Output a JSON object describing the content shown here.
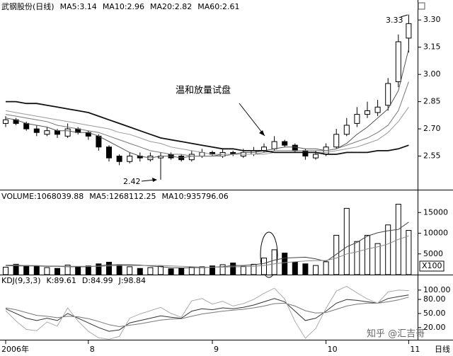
{
  "chart_data": [
    {
      "type": "candlestick",
      "title": "武钢股份(日线)",
      "period_label": "日线",
      "categories": [
        "2006年",
        null,
        null,
        null,
        null,
        null,
        null,
        null,
        "8",
        null,
        null,
        null,
        null,
        null,
        null,
        null,
        null,
        null,
        null,
        null,
        "9",
        null,
        null,
        null,
        null,
        null,
        null,
        null,
        null,
        null,
        null,
        "10",
        null,
        null,
        null,
        null,
        null,
        null,
        null,
        "11"
      ],
      "open": [
        2.73,
        2.75,
        2.73,
        2.7,
        2.67,
        2.69,
        2.66,
        2.7,
        2.68,
        2.66,
        2.6,
        2.55,
        2.52,
        2.55,
        2.53,
        2.54,
        2.56,
        2.55,
        2.53,
        2.55,
        2.57,
        2.55,
        2.57,
        2.55,
        2.56,
        2.58,
        2.59,
        2.63,
        2.61,
        2.58,
        2.54,
        2.56,
        2.6,
        2.67,
        2.73,
        2.78,
        2.79,
        2.83,
        2.96,
        3.2
      ],
      "high": [
        2.77,
        2.76,
        2.74,
        2.72,
        2.71,
        2.7,
        2.73,
        2.71,
        2.69,
        2.67,
        2.61,
        2.56,
        2.57,
        2.57,
        2.57,
        2.57,
        2.57,
        2.56,
        2.58,
        2.59,
        2.58,
        2.59,
        2.58,
        2.59,
        2.6,
        2.62,
        2.66,
        2.64,
        2.62,
        2.59,
        2.58,
        2.62,
        2.7,
        2.76,
        2.82,
        2.85,
        2.86,
        2.98,
        3.22,
        3.33
      ],
      "low": [
        2.71,
        2.72,
        2.69,
        2.66,
        2.66,
        2.65,
        2.65,
        2.67,
        2.64,
        2.58,
        2.52,
        2.5,
        2.51,
        2.52,
        2.52,
        2.42,
        2.53,
        2.52,
        2.52,
        2.54,
        2.55,
        2.54,
        2.55,
        2.54,
        2.55,
        2.57,
        2.58,
        2.6,
        2.57,
        2.53,
        2.53,
        2.55,
        2.59,
        2.66,
        2.71,
        2.76,
        2.77,
        2.8,
        2.93,
        3.12
      ],
      "close": [
        2.75,
        2.73,
        2.7,
        2.68,
        2.69,
        2.67,
        2.7,
        2.68,
        2.66,
        2.6,
        2.54,
        2.52,
        2.55,
        2.54,
        2.55,
        2.55,
        2.54,
        2.53,
        2.56,
        2.57,
        2.56,
        2.57,
        2.56,
        2.57,
        2.58,
        2.6,
        2.63,
        2.61,
        2.58,
        2.55,
        2.56,
        2.6,
        2.67,
        2.72,
        2.78,
        2.8,
        2.82,
        2.95,
        3.18,
        3.28
      ],
      "up_color": "#ffffff",
      "down_color": "#000000",
      "color": "#000000",
      "series": [
        {
          "name": "MA5:3.14",
          "color": "#555555",
          "values": [
            2.76,
            2.75,
            2.73,
            2.72,
            2.71,
            2.69,
            2.69,
            2.68,
            2.68,
            2.66,
            2.63,
            2.6,
            2.57,
            2.55,
            2.54,
            2.55,
            2.55,
            2.54,
            2.55,
            2.55,
            2.55,
            2.56,
            2.56,
            2.57,
            2.57,
            2.58,
            2.59,
            2.6,
            2.6,
            2.59,
            2.59,
            2.58,
            2.59,
            2.62,
            2.67,
            2.71,
            2.76,
            2.81,
            2.91,
            3.14
          ]
        },
        {
          "name": "MA10:2.96",
          "color": "#777777",
          "values": [
            2.78,
            2.77,
            2.76,
            2.75,
            2.74,
            2.72,
            2.71,
            2.7,
            2.69,
            2.68,
            2.66,
            2.64,
            2.62,
            2.6,
            2.58,
            2.57,
            2.56,
            2.56,
            2.55,
            2.55,
            2.55,
            2.55,
            2.56,
            2.56,
            2.56,
            2.57,
            2.58,
            2.58,
            2.58,
            2.58,
            2.58,
            2.58,
            2.59,
            2.61,
            2.63,
            2.65,
            2.68,
            2.72,
            2.8,
            2.96
          ]
        },
        {
          "name": "MA20:2.82",
          "color": "#999999",
          "values": [
            2.8,
            2.79,
            2.78,
            2.77,
            2.76,
            2.75,
            2.74,
            2.73,
            2.72,
            2.71,
            2.7,
            2.68,
            2.67,
            2.65,
            2.63,
            2.62,
            2.6,
            2.59,
            2.58,
            2.57,
            2.56,
            2.56,
            2.56,
            2.56,
            2.56,
            2.56,
            2.57,
            2.57,
            2.57,
            2.57,
            2.57,
            2.57,
            2.58,
            2.59,
            2.6,
            2.62,
            2.64,
            2.68,
            2.74,
            2.82
          ]
        },
        {
          "name": "MA60:2.61",
          "color": "#111111",
          "values": [
            2.85,
            2.85,
            2.84,
            2.84,
            2.83,
            2.82,
            2.81,
            2.8,
            2.79,
            2.77,
            2.75,
            2.73,
            2.71,
            2.69,
            2.67,
            2.65,
            2.64,
            2.63,
            2.62,
            2.61,
            2.6,
            2.59,
            2.59,
            2.58,
            2.58,
            2.58,
            2.57,
            2.57,
            2.57,
            2.57,
            2.57,
            2.56,
            2.56,
            2.57,
            2.57,
            2.57,
            2.58,
            2.58,
            2.59,
            2.61
          ]
        }
      ],
      "ylim": [
        2.365,
        3.41
      ],
      "yticks": [
        {
          "value": 3.3,
          "label": "3.30"
        },
        {
          "value": 3.15,
          "label": "3.15"
        },
        {
          "value": 3.0,
          "label": "3.00"
        },
        {
          "value": 2.85,
          "label": "2.85"
        },
        {
          "value": 2.7,
          "label": "2.70"
        },
        {
          "value": 2.55,
          "label": "2.55"
        }
      ],
      "annotations": [
        "温和放量试盘",
        "2.42",
        "3.33"
      ]
    },
    {
      "type": "bar",
      "title": "VOLUME:1068039.88",
      "unit_label": "X100",
      "values": [
        1800,
        2500,
        2200,
        2000,
        1700,
        1500,
        2300,
        1900,
        2100,
        2600,
        3000,
        2400,
        1900,
        1500,
        1700,
        2000,
        1400,
        1600,
        1800,
        1900,
        2100,
        2400,
        2800,
        2000,
        2500,
        4000,
        6000,
        5200,
        3000,
        2600,
        2200,
        3100,
        9500,
        16000,
        8000,
        9500,
        7500,
        12000,
        17000,
        10680.3988
      ],
      "series": [
        {
          "name": "MA5:1268112.25",
          "color": "#444444",
          "values": [
            2200,
            2100,
            2100,
            2100,
            2000,
            2000,
            1900,
            1900,
            1900,
            2100,
            2400,
            2400,
            2400,
            2300,
            2100,
            1900,
            1700,
            1600,
            1700,
            1700,
            1800,
            1900,
            2200,
            2200,
            2400,
            2700,
            3500,
            4000,
            4100,
            4200,
            3800,
            3200,
            4900,
            6700,
            7800,
            9300,
            10100,
            10600,
            10900,
            12681.1225
          ]
        },
        {
          "name": "MA10:935796.06",
          "color": "#888888",
          "values": [
            2300,
            2300,
            2200,
            2200,
            2100,
            2100,
            2000,
            2000,
            2000,
            2000,
            2100,
            2200,
            2200,
            2200,
            2200,
            2200,
            2100,
            2000,
            1900,
            1800,
            1800,
            1800,
            1900,
            1900,
            2000,
            2200,
            2600,
            2900,
            3100,
            3300,
            3400,
            3400,
            4000,
            5000,
            5500,
            6200,
            6700,
            7400,
            8500,
            9357.9606
          ]
        }
      ],
      "ylim": [
        0,
        20000
      ],
      "yticks": [
        5000,
        10000,
        15000
      ]
    },
    {
      "type": "line",
      "title": "KDJ(9,3,3)",
      "series": [
        {
          "name": "K:89.61",
          "color": "#333333",
          "values": [
            60,
            50,
            40,
            35,
            40,
            35,
            50,
            40,
            30,
            20,
            12,
            15,
            30,
            35,
            40,
            45,
            42,
            40,
            55,
            60,
            58,
            62,
            60,
            63,
            68,
            75,
            82,
            75,
            55,
            35,
            40,
            55,
            72,
            80,
            78,
            75,
            72,
            82,
            86,
            89.61
          ]
        },
        {
          "name": "D:84.99",
          "color": "#777777",
          "values": [
            62,
            58,
            52,
            46,
            44,
            41,
            44,
            43,
            39,
            33,
            26,
            22,
            25,
            28,
            32,
            36,
            38,
            39,
            44,
            49,
            52,
            55,
            57,
            59,
            62,
            66,
            71,
            72,
            66,
            56,
            51,
            52,
            59,
            66,
            70,
            72,
            72,
            75,
            79,
            84.99
          ]
        },
        {
          "name": "J:98.84",
          "color": "#aaaaaa",
          "values": [
            56,
            34,
            16,
            13,
            32,
            23,
            62,
            34,
            12,
            -2,
            -5,
            1,
            40,
            49,
            56,
            63,
            50,
            42,
            77,
            82,
            70,
            76,
            66,
            71,
            80,
            93,
            104,
            81,
            33,
            -3,
            18,
            61,
            98,
            108,
            94,
            81,
            72,
            96,
            100,
            98.84
          ]
        }
      ],
      "ylim": [
        -6,
        130
      ],
      "yticks": [
        {
          "value": 100,
          "label": "100.00"
        },
        {
          "value": 80,
          "label": "80.00"
        },
        {
          "value": 50,
          "label": "50.00"
        },
        {
          "value": 20,
          "label": "20.00"
        }
      ]
    }
  ],
  "watermark": "知乎 @汇吉哥"
}
